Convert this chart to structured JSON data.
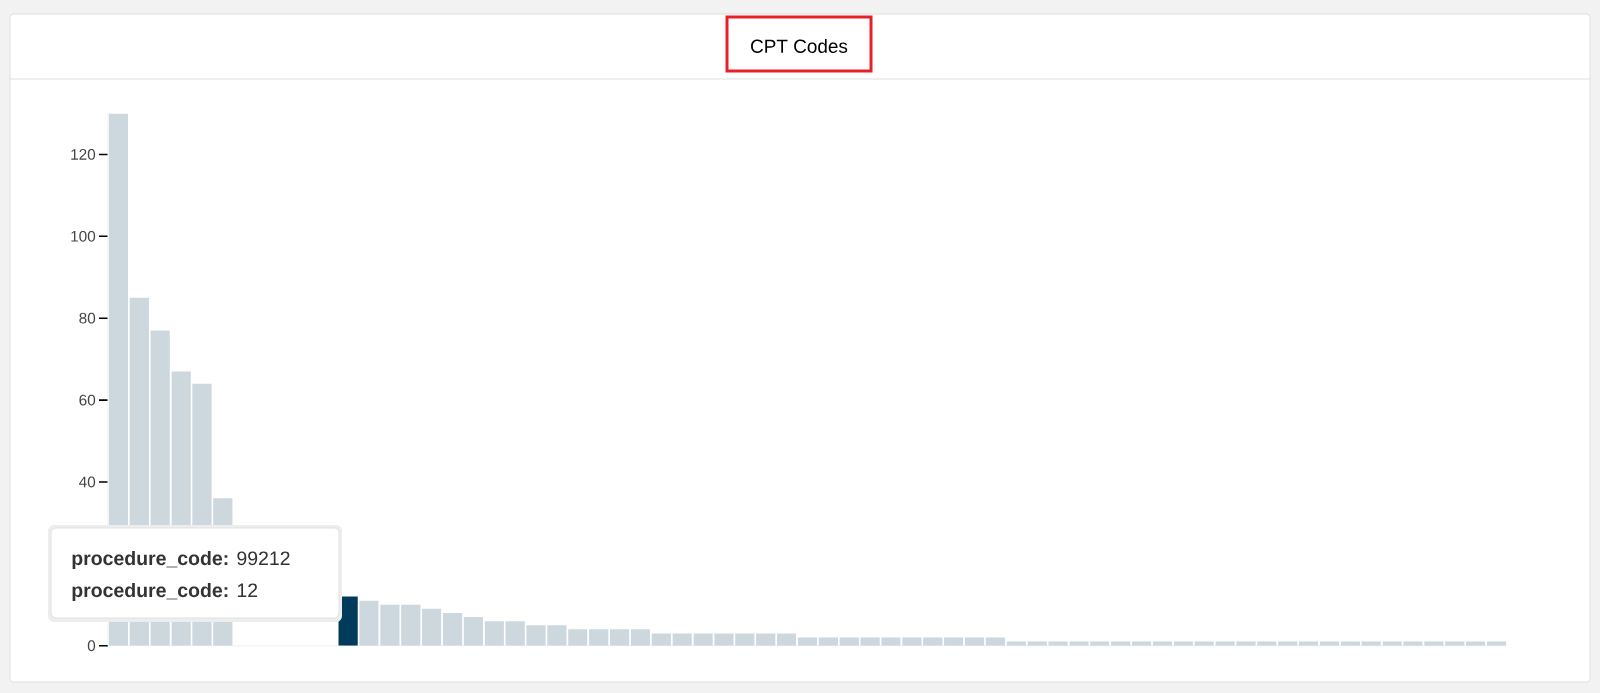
{
  "chart_data": {
    "type": "bar",
    "title": "CPT Codes",
    "categories": [
      null,
      null,
      null,
      null,
      null,
      null,
      null,
      null,
      null,
      null,
      null,
      null,
      null,
      null,
      null,
      null,
      null,
      null,
      null,
      null,
      null,
      null,
      null,
      null,
      null,
      null,
      null,
      null,
      null,
      null,
      null,
      null,
      null,
      null,
      null,
      null,
      null,
      null,
      null,
      null,
      null,
      null,
      null,
      null,
      null,
      null,
      null,
      null,
      null,
      null,
      null,
      null,
      null,
      null,
      null,
      null,
      null,
      null,
      null,
      null,
      null,
      null,
      null,
      null,
      null,
      null,
      null
    ],
    "values": [
      130,
      85,
      77,
      67,
      64,
      36,
      null,
      null,
      null,
      null,
      null,
      12,
      11,
      10,
      10,
      9,
      8,
      7,
      6,
      6,
      5,
      5,
      4,
      4,
      4,
      4,
      3,
      3,
      3,
      3,
      3,
      3,
      3,
      2,
      2,
      2,
      2,
      2,
      2,
      2,
      2,
      2,
      2,
      1,
      1,
      1,
      1,
      1,
      1,
      1,
      1,
      1,
      1,
      1,
      1,
      1,
      1,
      1,
      1,
      1,
      1,
      1,
      1,
      1,
      1,
      1,
      1
    ],
    "colors": [
      "#ccd7de",
      "#ccd7de",
      "#ccd7de",
      "#ccd7de",
      "#ccd7de",
      "#ccd7de",
      "#ccd7de",
      "#ccd7de",
      "#ccd7de",
      "#ccd7de",
      "#ccd7de",
      "#023a5c",
      "#ccd7de",
      "#ccd7de",
      "#ccd7de",
      "#ccd7de",
      "#ccd7de",
      "#ccd7de",
      "#ccd7de",
      "#ccd7de",
      "#ccd7de",
      "#ccd7de",
      "#ccd7de",
      "#ccd7de",
      "#ccd7de",
      "#ccd7de",
      "#ccd7de",
      "#ccd7de",
      "#ccd7de",
      "#ccd7de",
      "#ccd7de",
      "#ccd7de",
      "#ccd7de",
      "#ccd7de",
      "#ccd7de",
      "#ccd7de",
      "#ccd7de",
      "#ccd7de",
      "#ccd7de",
      "#ccd7de",
      "#ccd7de",
      "#ccd7de",
      "#ccd7de",
      "#ccd7de",
      "#ccd7de",
      "#ccd7de",
      "#ccd7de",
      "#ccd7de",
      "#ccd7de",
      "#ccd7de",
      "#ccd7de",
      "#ccd7de",
      "#ccd7de",
      "#ccd7de",
      "#ccd7de",
      "#ccd7de",
      "#ccd7de",
      "#ccd7de",
      "#ccd7de",
      "#ccd7de",
      "#ccd7de",
      "#ccd7de",
      "#ccd7de",
      "#ccd7de",
      "#ccd7de",
      "#ccd7de",
      "#ccd7de"
    ],
    "ylim": [
      0,
      130
    ],
    "yticks": [
      0,
      40,
      60,
      80,
      100,
      120
    ],
    "annotations": [
      "**procedure_code:** 99212",
      "**procedure_code:** 12"
    ]
  }
}
